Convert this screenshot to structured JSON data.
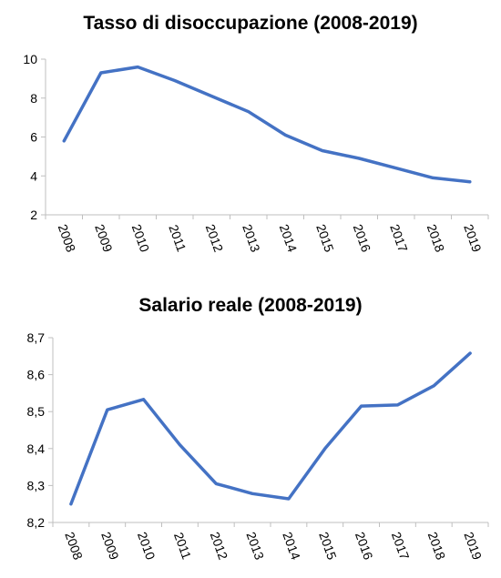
{
  "chart_data": [
    {
      "type": "line",
      "title": "Tasso di disoccupazione (2008-2019)",
      "xlabel": "",
      "ylabel": "",
      "x": [
        "2008",
        "2009",
        "2010",
        "2011",
        "2012",
        "2013",
        "2014",
        "2015",
        "2016",
        "2017",
        "2018",
        "2019"
      ],
      "series": [
        {
          "values": [
            5.8,
            9.3,
            9.6,
            8.9,
            8.1,
            7.3,
            6.1,
            5.3,
            4.9,
            4.4,
            3.9,
            3.7
          ]
        }
      ],
      "ylim": [
        2,
        10
      ],
      "yticks": [
        "2",
        "4",
        "6",
        "8",
        "10"
      ],
      "grid": false,
      "line_color": "#4472C4"
    },
    {
      "type": "line",
      "title": "Salario reale (2008-2019)",
      "xlabel": "",
      "ylabel": "",
      "x": [
        "2008",
        "2009",
        "2010",
        "2011",
        "2012",
        "2013",
        "2014",
        "2015",
        "2016",
        "2017",
        "2018",
        "2019"
      ],
      "series": [
        {
          "values": [
            8.25,
            8.505,
            8.533,
            8.41,
            8.305,
            8.278,
            8.264,
            8.4,
            8.515,
            8.518,
            8.57,
            8.658
          ]
        }
      ],
      "ylim": [
        8.2,
        8.7
      ],
      "yticks": [
        "8,2",
        "8,3",
        "8,4",
        "8,5",
        "8,6",
        "8,7"
      ],
      "grid": false,
      "line_color": "#4472C4"
    }
  ]
}
